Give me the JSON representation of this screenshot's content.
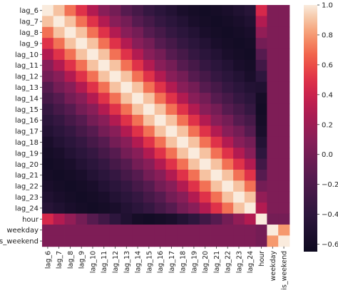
{
  "chart_data": {
    "type": "heatmap",
    "title": "",
    "labels": [
      "lag_6",
      "lag_7",
      "lag_8",
      "lag_9",
      "lag_10",
      "lag_11",
      "lag_12",
      "lag_13",
      "lag_14",
      "lag_15",
      "lag_16",
      "lag_17",
      "lag_18",
      "lag_19",
      "lag_20",
      "lag_21",
      "lag_22",
      "lag_23",
      "lag_24",
      "hour",
      "weekday",
      "is_weekend"
    ],
    "n_lags": 19,
    "matrix": [
      [
        1.0,
        0.9,
        0.7,
        0.5,
        0.3,
        0.1,
        0.0,
        -0.15,
        -0.25,
        -0.35,
        -0.42,
        -0.48,
        -0.55,
        -0.58,
        -0.6,
        -0.58,
        -0.55,
        -0.5,
        -0.45,
        0.45,
        0.05,
        0.05
      ],
      [
        0.9,
        1.0,
        0.9,
        0.7,
        0.5,
        0.3,
        0.1,
        0.0,
        -0.15,
        -0.25,
        -0.35,
        -0.42,
        -0.48,
        -0.55,
        -0.58,
        -0.6,
        -0.58,
        -0.55,
        -0.5,
        0.3,
        0.05,
        0.05
      ],
      [
        0.7,
        0.9,
        1.0,
        0.9,
        0.7,
        0.5,
        0.3,
        0.1,
        0.0,
        -0.15,
        -0.25,
        -0.35,
        -0.42,
        -0.48,
        -0.55,
        -0.58,
        -0.6,
        -0.58,
        -0.55,
        0.15,
        0.05,
        0.05
      ],
      [
        0.5,
        0.7,
        0.9,
        1.0,
        0.9,
        0.7,
        0.5,
        0.3,
        0.1,
        0.0,
        -0.15,
        -0.25,
        -0.35,
        -0.42,
        -0.48,
        -0.55,
        -0.58,
        -0.6,
        -0.58,
        0.0,
        0.05,
        0.05
      ],
      [
        0.3,
        0.5,
        0.7,
        0.9,
        1.0,
        0.9,
        0.7,
        0.5,
        0.3,
        0.1,
        0.0,
        -0.15,
        -0.25,
        -0.35,
        -0.42,
        -0.48,
        -0.55,
        -0.58,
        -0.6,
        -0.15,
        0.05,
        0.05
      ],
      [
        0.1,
        0.3,
        0.5,
        0.7,
        0.9,
        1.0,
        0.9,
        0.7,
        0.5,
        0.3,
        0.1,
        0.0,
        -0.15,
        -0.25,
        -0.35,
        -0.42,
        -0.48,
        -0.55,
        -0.58,
        -0.28,
        0.05,
        0.05
      ],
      [
        0.0,
        0.1,
        0.3,
        0.5,
        0.7,
        0.9,
        1.0,
        0.9,
        0.7,
        0.5,
        0.3,
        0.1,
        0.0,
        -0.15,
        -0.25,
        -0.35,
        -0.42,
        -0.48,
        -0.55,
        -0.4,
        0.05,
        0.05
      ],
      [
        -0.15,
        0.0,
        0.1,
        0.3,
        0.5,
        0.7,
        0.9,
        1.0,
        0.9,
        0.7,
        0.5,
        0.3,
        0.1,
        0.0,
        -0.15,
        -0.25,
        -0.35,
        -0.42,
        -0.48,
        -0.5,
        0.05,
        0.05
      ],
      [
        -0.25,
        -0.15,
        0.0,
        0.1,
        0.3,
        0.5,
        0.7,
        0.9,
        1.0,
        0.9,
        0.7,
        0.5,
        0.3,
        0.1,
        0.0,
        -0.15,
        -0.25,
        -0.35,
        -0.42,
        -0.58,
        0.05,
        0.05
      ],
      [
        -0.35,
        -0.25,
        -0.15,
        0.0,
        0.1,
        0.3,
        0.5,
        0.7,
        0.9,
        1.0,
        0.9,
        0.7,
        0.5,
        0.3,
        0.1,
        0.0,
        -0.15,
        -0.25,
        -0.35,
        -0.6,
        0.05,
        0.05
      ],
      [
        -0.42,
        -0.35,
        -0.25,
        -0.15,
        0.0,
        0.1,
        0.3,
        0.5,
        0.7,
        0.9,
        1.0,
        0.9,
        0.7,
        0.5,
        0.3,
        0.1,
        0.0,
        -0.15,
        -0.25,
        -0.58,
        0.05,
        0.05
      ],
      [
        -0.48,
        -0.42,
        -0.35,
        -0.25,
        -0.15,
        0.0,
        0.1,
        0.3,
        0.5,
        0.7,
        0.9,
        1.0,
        0.9,
        0.7,
        0.5,
        0.3,
        0.1,
        0.0,
        -0.15,
        -0.55,
        0.05,
        0.05
      ],
      [
        -0.55,
        -0.48,
        -0.42,
        -0.35,
        -0.25,
        -0.15,
        0.0,
        0.1,
        0.3,
        0.5,
        0.7,
        0.9,
        1.0,
        0.9,
        0.7,
        0.5,
        0.3,
        0.1,
        0.0,
        -0.48,
        0.05,
        0.05
      ],
      [
        -0.58,
        -0.55,
        -0.48,
        -0.42,
        -0.35,
        -0.25,
        -0.15,
        0.0,
        0.1,
        0.3,
        0.5,
        0.7,
        0.9,
        1.0,
        0.9,
        0.7,
        0.5,
        0.3,
        0.1,
        -0.4,
        0.05,
        0.05
      ],
      [
        -0.6,
        -0.58,
        -0.55,
        -0.48,
        -0.42,
        -0.35,
        -0.25,
        -0.15,
        0.0,
        0.1,
        0.3,
        0.5,
        0.7,
        0.9,
        1.0,
        0.9,
        0.7,
        0.5,
        0.3,
        -0.28,
        0.05,
        0.05
      ],
      [
        -0.58,
        -0.6,
        -0.58,
        -0.55,
        -0.48,
        -0.42,
        -0.35,
        -0.25,
        -0.15,
        0.0,
        0.1,
        0.3,
        0.5,
        0.7,
        0.9,
        1.0,
        0.9,
        0.7,
        0.5,
        -0.15,
        0.05,
        0.05
      ],
      [
        -0.55,
        -0.58,
        -0.6,
        -0.58,
        -0.55,
        -0.48,
        -0.42,
        -0.35,
        -0.25,
        -0.15,
        0.0,
        0.1,
        0.3,
        0.5,
        0.7,
        0.9,
        1.0,
        0.9,
        0.7,
        0.0,
        0.05,
        0.05
      ],
      [
        -0.5,
        -0.55,
        -0.58,
        -0.6,
        -0.58,
        -0.55,
        -0.48,
        -0.42,
        -0.35,
        -0.25,
        -0.15,
        0.0,
        0.1,
        0.3,
        0.5,
        0.7,
        0.9,
        1.0,
        0.9,
        0.15,
        0.05,
        0.05
      ],
      [
        -0.45,
        -0.5,
        -0.55,
        -0.58,
        -0.6,
        -0.58,
        -0.55,
        -0.48,
        -0.42,
        -0.35,
        -0.25,
        -0.15,
        0.0,
        0.1,
        0.3,
        0.5,
        0.7,
        0.9,
        1.0,
        0.3,
        0.05,
        0.05
      ],
      [
        0.45,
        0.3,
        0.15,
        0.0,
        -0.15,
        -0.28,
        -0.4,
        -0.5,
        -0.58,
        -0.6,
        -0.58,
        -0.55,
        -0.48,
        -0.4,
        -0.28,
        -0.15,
        0.0,
        0.15,
        0.3,
        1.0,
        0.0,
        0.0
      ],
      [
        0.05,
        0.05,
        0.05,
        0.05,
        0.05,
        0.05,
        0.05,
        0.05,
        0.05,
        0.05,
        0.05,
        0.05,
        0.05,
        0.05,
        0.05,
        0.05,
        0.05,
        0.05,
        0.05,
        0.0,
        1.0,
        0.8
      ],
      [
        0.05,
        0.05,
        0.05,
        0.05,
        0.05,
        0.05,
        0.05,
        0.05,
        0.05,
        0.05,
        0.05,
        0.05,
        0.05,
        0.05,
        0.05,
        0.05,
        0.05,
        0.05,
        0.05,
        0.0,
        0.8,
        1.0
      ]
    ],
    "vmin": -0.65,
    "vmax": 1.0,
    "colormap": "rocket",
    "colorbar": {
      "ticks": [
        1.0,
        0.8,
        0.6,
        0.4,
        0.2,
        0.0,
        -0.2,
        -0.4,
        -0.6
      ],
      "tick_labels": [
        "1.0",
        "0.8",
        "0.6",
        "0.4",
        "0.2",
        "0.0",
        "−0.2",
        "−0.4",
        "−0.6"
      ],
      "placement": "right"
    },
    "grid": false
  }
}
